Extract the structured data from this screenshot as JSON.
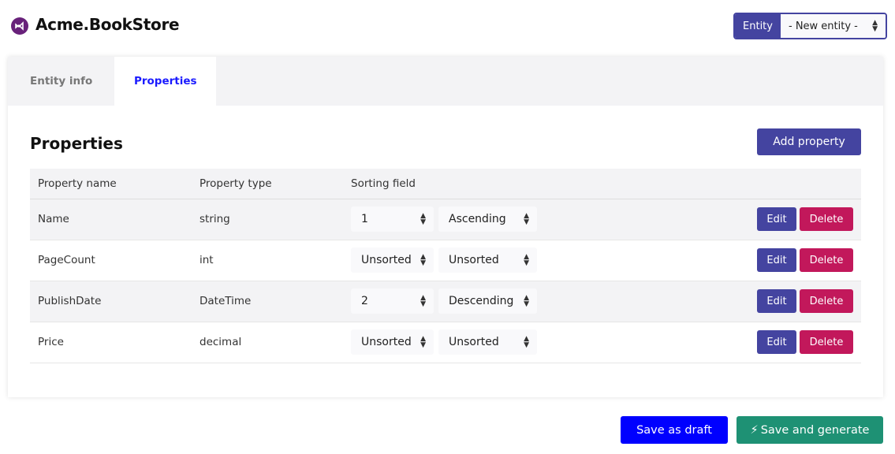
{
  "app": {
    "title": "Acme.BookStore"
  },
  "entity_selector": {
    "label": "Entity",
    "value": "- New entity -"
  },
  "tabs": [
    {
      "label": "Entity info",
      "active": false
    },
    {
      "label": "Properties",
      "active": true
    }
  ],
  "section": {
    "title": "Properties",
    "add_label": "Add property"
  },
  "table": {
    "headers": [
      "Property name",
      "Property type",
      "Sorting field"
    ],
    "rows": [
      {
        "name": "Name",
        "type": "string",
        "order": "1",
        "direction": "Ascending"
      },
      {
        "name": "PageCount",
        "type": "int",
        "order": "Unsorted",
        "direction": "Unsorted"
      },
      {
        "name": "PublishDate",
        "type": "DateTime",
        "order": "2",
        "direction": "Descending"
      },
      {
        "name": "Price",
        "type": "decimal",
        "order": "Unsorted",
        "direction": "Unsorted"
      }
    ],
    "edit_label": "Edit",
    "delete_label": "Delete"
  },
  "footer": {
    "draft_label": "Save as draft",
    "generate_label": "Save and generate"
  },
  "colors": {
    "primary": "#4444a0",
    "danger": "#c2185b",
    "draft": "#0000ff",
    "generate": "#1e9174",
    "logo": "#68217a"
  }
}
